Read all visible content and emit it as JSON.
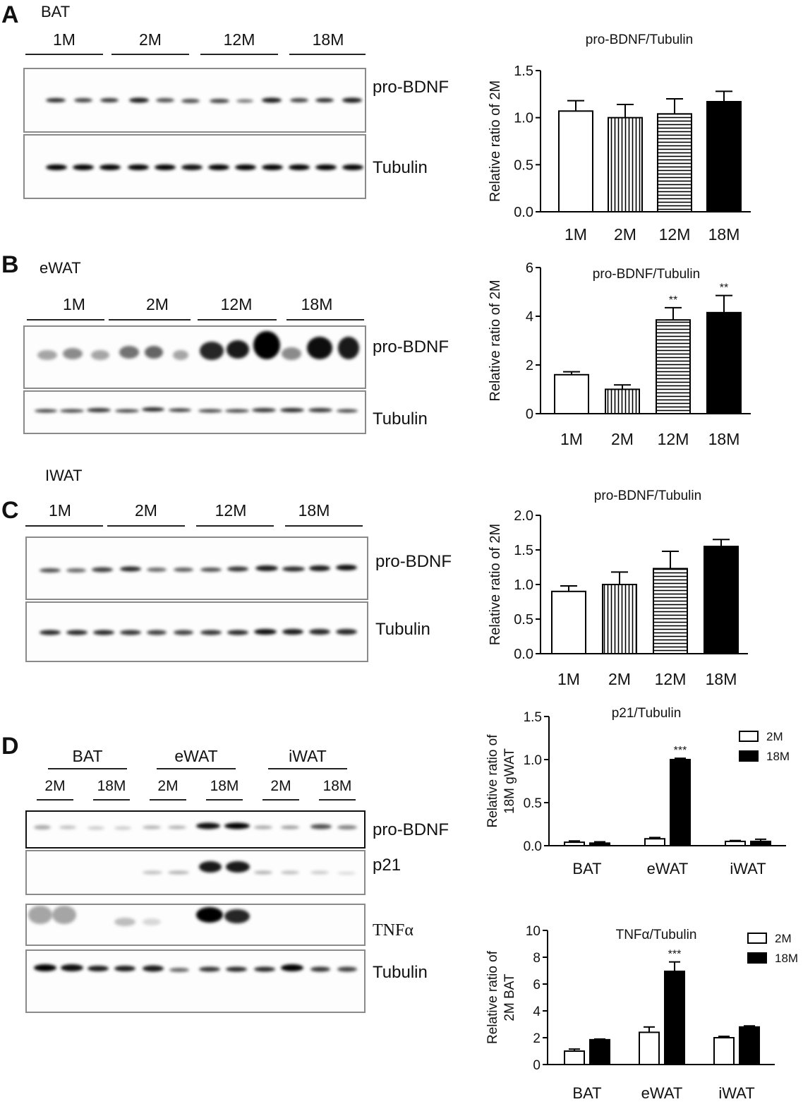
{
  "colors": {
    "axis": "#000000",
    "bar_fill_dark": "#000000",
    "bar_fill_light": "#ffffff",
    "blot_border": "#8a8a8a"
  },
  "panels": {
    "A": {
      "letter": "A",
      "tissue": "BAT",
      "groups": [
        "1M",
        "2M",
        "12M",
        "18M"
      ],
      "blot_labels": [
        "pro-BDNF",
        "Tubulin"
      ],
      "chart_data": {
        "type": "bar",
        "title": "pro-BDNF/Tubulin",
        "ylabel": "Relative ratio of 2M",
        "categories": [
          "1M",
          "2M",
          "12M",
          "18M"
        ],
        "values": [
          1.07,
          1.0,
          1.04,
          1.17
        ],
        "errors": [
          0.11,
          0.14,
          0.16,
          0.11
        ],
        "patterns": [
          "open",
          "vertical-stripes",
          "horizontal-stripes",
          "solid"
        ],
        "ylim": [
          0,
          1.5
        ],
        "yticks": [
          "0.0",
          "0.5",
          "1.0",
          "1.5"
        ],
        "annotations": [
          "",
          "",
          "",
          ""
        ]
      }
    },
    "B": {
      "letter": "B",
      "tissue": "eWAT",
      "groups": [
        "1M",
        "2M",
        "12M",
        "18M"
      ],
      "blot_labels": [
        "pro-BDNF",
        "Tubulin"
      ],
      "chart_data": {
        "type": "bar",
        "title": "pro-BDNF/Tubulin",
        "ylabel": "Relative ratio of 2M",
        "categories": [
          "1M",
          "2M",
          "12M",
          "18M"
        ],
        "values": [
          1.6,
          1.0,
          3.85,
          4.15
        ],
        "errors": [
          0.12,
          0.18,
          0.5,
          0.7
        ],
        "patterns": [
          "open",
          "vertical-stripes",
          "horizontal-stripes",
          "solid"
        ],
        "ylim": [
          0,
          6
        ],
        "yticks": [
          "0",
          "2",
          "4",
          "6"
        ],
        "annotations": [
          "",
          "",
          "**",
          "**"
        ]
      }
    },
    "C": {
      "letter": "C",
      "tissue": "IWAT",
      "groups": [
        "1M",
        "2M",
        "12M",
        "18M"
      ],
      "blot_labels": [
        "pro-BDNF",
        "Tubulin"
      ],
      "chart_data": {
        "type": "bar",
        "title": "pro-BDNF/Tubulin",
        "ylabel": "Relative ratio of 2M",
        "categories": [
          "1M",
          "2M",
          "12M",
          "18M"
        ],
        "values": [
          0.9,
          1.0,
          1.23,
          1.55
        ],
        "errors": [
          0.08,
          0.18,
          0.25,
          0.1
        ],
        "patterns": [
          "open",
          "vertical-stripes",
          "horizontal-stripes",
          "solid"
        ],
        "ylim": [
          0,
          2.0
        ],
        "yticks": [
          "0.0",
          "0.5",
          "1.0",
          "1.5",
          "2.0"
        ],
        "annotations": [
          "",
          "",
          "",
          ""
        ]
      }
    },
    "D": {
      "letter": "D",
      "tissues": [
        "BAT",
        "eWAT",
        "iWAT"
      ],
      "ages": [
        "2M",
        "18M",
        "2M",
        "18M",
        "2M",
        "18M"
      ],
      "blot_labels": [
        "pro-BDNF",
        "p21",
        "TNFα",
        "Tubulin"
      ],
      "chart_data": [
        {
          "type": "bar",
          "title": "p21/Tubulin",
          "ylabel_lines": [
            "Relative ratio of",
            "18M gWAT"
          ],
          "categories": [
            "BAT",
            "eWAT",
            "iWAT"
          ],
          "series": [
            {
              "name": "2M",
              "values": [
                0.04,
                0.08,
                0.05
              ],
              "errors": [
                0.015,
                0.015,
                0.01
              ]
            },
            {
              "name": "18M",
              "values": [
                0.03,
                1.0,
                0.05
              ],
              "errors": [
                0.015,
                0.015,
                0.025
              ]
            }
          ],
          "ylim": [
            0,
            1.5
          ],
          "yticks": [
            "0.0",
            "0.5",
            "1.0",
            "1.5"
          ],
          "annotations": [
            "",
            "***",
            ""
          ],
          "legend_position": "top-right"
        },
        {
          "type": "bar",
          "title": "TNFα/Tubulin",
          "ylabel_lines": [
            "Relative ratio of",
            "2M BAT"
          ],
          "categories": [
            "BAT",
            "eWAT",
            "iWAT"
          ],
          "series": [
            {
              "name": "2M",
              "values": [
                1.0,
                2.4,
                2.0
              ],
              "errors": [
                0.15,
                0.4,
                0.1
              ]
            },
            {
              "name": "18M",
              "values": [
                1.85,
                6.95,
                2.8
              ],
              "errors": [
                0.05,
                0.7,
                0.08
              ]
            }
          ],
          "ylim": [
            0,
            10
          ],
          "yticks": [
            "0",
            "2",
            "4",
            "6",
            "8",
            "10"
          ],
          "annotations": [
            "",
            "***",
            ""
          ],
          "legend_position": "top-right"
        }
      ]
    }
  }
}
